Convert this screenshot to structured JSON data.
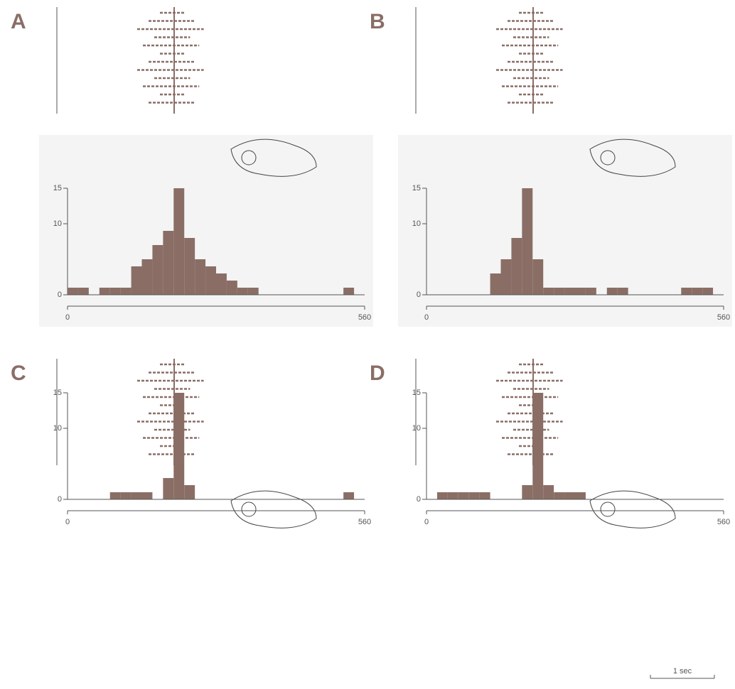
{
  "chart_data": [
    {
      "type": "histogram",
      "title": "A",
      "color": "#8a6e66",
      "bins": [
        0,
        20,
        40,
        60,
        80,
        100,
        120,
        140,
        160,
        180,
        200,
        220,
        240,
        260,
        280,
        300,
        320,
        340,
        360,
        380,
        400,
        420,
        440,
        460,
        480,
        500,
        520,
        540,
        560
      ],
      "counts": [
        1,
        1,
        0,
        1,
        1,
        1,
        4,
        5,
        7,
        9,
        15,
        8,
        5,
        4,
        3,
        2,
        1,
        1,
        0,
        0,
        0,
        0,
        0,
        0,
        0,
        0,
        1,
        0
      ],
      "xlim": [
        0,
        560
      ],
      "ylim": [
        0,
        15
      ],
      "xticks": [
        0,
        560
      ],
      "yticks": [
        0,
        10,
        15
      ]
    },
    {
      "type": "histogram",
      "title": "B",
      "color": "#8a6e66",
      "bins": [
        0,
        20,
        40,
        60,
        80,
        100,
        120,
        140,
        160,
        180,
        200,
        220,
        240,
        260,
        280,
        300,
        320,
        340,
        360,
        380,
        400,
        420,
        440,
        460,
        480,
        500,
        520,
        540,
        560
      ],
      "counts": [
        0,
        0,
        0,
        0,
        0,
        0,
        3,
        5,
        8,
        15,
        5,
        1,
        1,
        1,
        1,
        1,
        0,
        1,
        1,
        0,
        0,
        0,
        0,
        0,
        1,
        1,
        1,
        0
      ],
      "xlim": [
        0,
        560
      ],
      "ylim": [
        0,
        15
      ],
      "xticks": [
        0,
        560
      ],
      "yticks": [
        0,
        10,
        15
      ]
    },
    {
      "type": "histogram",
      "title": "C",
      "color": "#8a6e66",
      "bins": [
        0,
        20,
        40,
        60,
        80,
        100,
        120,
        140,
        160,
        180,
        200,
        220,
        240,
        260,
        280,
        300,
        320,
        340,
        360,
        380,
        400,
        420,
        440,
        460,
        480,
        500,
        520,
        540,
        560
      ],
      "counts": [
        0,
        0,
        0,
        0,
        1,
        1,
        1,
        1,
        0,
        3,
        15,
        2,
        0,
        0,
        0,
        0,
        0,
        0,
        0,
        0,
        0,
        0,
        0,
        0,
        0,
        0,
        1,
        0
      ],
      "xlim": [
        0,
        560
      ],
      "ylim": [
        0,
        15
      ],
      "xticks": [
        0,
        560
      ],
      "yticks": [
        0,
        10,
        15
      ]
    },
    {
      "type": "histogram",
      "title": "D",
      "color": "#8a6e66",
      "bins": [
        0,
        20,
        40,
        60,
        80,
        100,
        120,
        140,
        160,
        180,
        200,
        220,
        240,
        260,
        280,
        300,
        320,
        340,
        360,
        380,
        400,
        420,
        440,
        460,
        480,
        500,
        520,
        540,
        560
      ],
      "counts": [
        0,
        1,
        1,
        1,
        1,
        1,
        0,
        0,
        0,
        2,
        15,
        2,
        1,
        1,
        1,
        0,
        0,
        0,
        0,
        0,
        0,
        0,
        0,
        0,
        0,
        0,
        0,
        0
      ],
      "xlim": [
        0,
        560
      ],
      "ylim": [
        0,
        15
      ],
      "xticks": [
        0,
        560
      ],
      "yticks": [
        0,
        10,
        15
      ]
    }
  ],
  "scale_bar": {
    "label": "1 sec"
  }
}
